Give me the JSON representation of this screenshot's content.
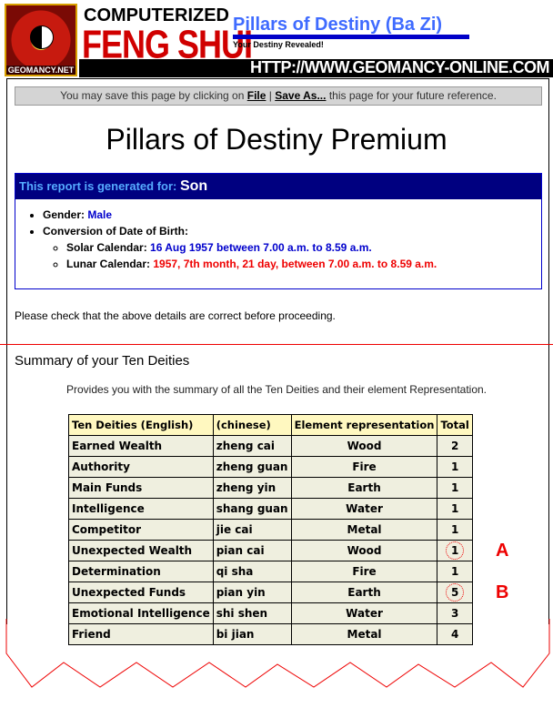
{
  "header": {
    "logo_text": "GEOMANCY.NET",
    "brand_top": "COMPUTERIZED",
    "brand_main": "FENG SHUI",
    "product": "Pillars of Destiny (Ba Zi)",
    "tagline": "Your Destiny Revealed!",
    "url": "HTTP://WWW.GEOMANCY-ONLINE.COM"
  },
  "save_notice": {
    "prefix": "You may save this page by clicking on ",
    "file": "File",
    "sep": " | ",
    "save_as": "Save As...",
    "suffix": " this page for your future reference."
  },
  "title": "Pillars of Destiny Premium",
  "report": {
    "label": "This report is generated for: ",
    "name": "Son",
    "gender_label": "Gender: ",
    "gender": "Male",
    "conversion_label": "Conversion of Date of Birth:",
    "solar_label": "Solar Calendar: ",
    "solar": "16 Aug 1957 between 7.00 a.m. to 8.59 a.m.",
    "lunar_label": "Lunar Calendar: ",
    "lunar": "1957, 7th month, 21 day, between 7.00 a.m. to 8.59 a.m."
  },
  "check_text": "Please check that the above details are correct before proceeding.",
  "summary": {
    "heading": "Summary of your Ten Deities",
    "description": "Provides you with the summary of all the Ten Deities and their element Representation.",
    "columns": [
      "Ten Deities (English)",
      "(chinese)",
      "Element representation",
      "Total"
    ],
    "rows": [
      [
        "Earned Wealth",
        "zheng cai",
        "Wood",
        "2"
      ],
      [
        "Authority",
        "zheng guan",
        "Fire",
        "1"
      ],
      [
        "Main Funds",
        "zheng yin",
        "Earth",
        "1"
      ],
      [
        "Intelligence",
        "shang guan",
        "Water",
        "1"
      ],
      [
        "Competitor",
        "jie cai",
        "Metal",
        "1"
      ],
      [
        "Unexpected Wealth",
        "pian cai",
        "Wood",
        "1"
      ],
      [
        "Determination",
        "qi sha",
        "Fire",
        "1"
      ],
      [
        "Unexpected Funds",
        "pian yin",
        "Earth",
        "5"
      ],
      [
        "Emotional Intelligence",
        "shi shen",
        "Water",
        "3"
      ],
      [
        "Friend",
        "bi jian",
        "Metal",
        "4"
      ]
    ],
    "annotations": {
      "5": "A",
      "7": "B"
    }
  }
}
